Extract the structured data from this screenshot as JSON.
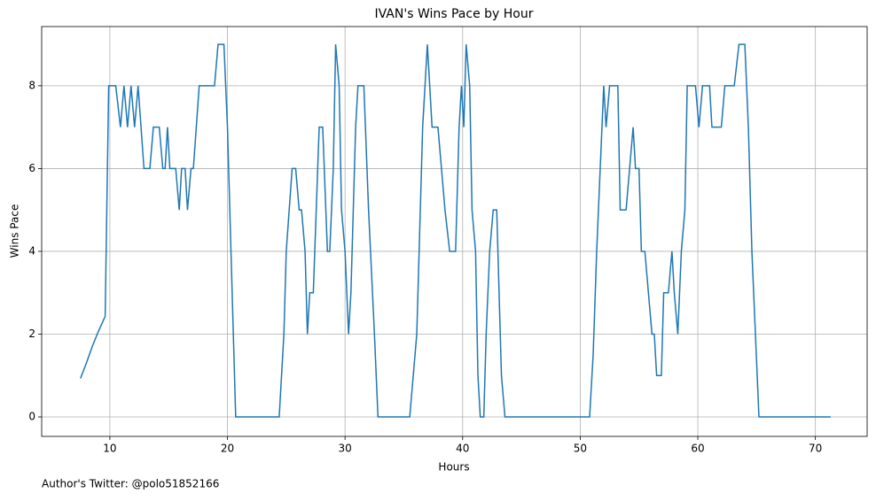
{
  "chart_data": {
    "type": "line",
    "title": "IVAN's Wins Pace by Hour",
    "xlabel": "Hours",
    "ylabel": "Wins Pace",
    "footer": "Author's Twitter: @polo51852166",
    "x": [
      7.5,
      8,
      8.5,
      9,
      9.6,
      9.9,
      10.5,
      10.9,
      11.2,
      11.5,
      11.8,
      12.1,
      12.4,
      12.9,
      13.4,
      13.7,
      14.2,
      14.5,
      14.7,
      14.9,
      15.1,
      15.6,
      15.9,
      16.1,
      16.4,
      16.6,
      16.9,
      17.1,
      17.6,
      18.9,
      19.2,
      19.7,
      20.0,
      20.3,
      20.7,
      24.4,
      24.8,
      25.0,
      25.5,
      25.8,
      26.1,
      26.3,
      26.6,
      26.8,
      27.0,
      27.3,
      27.8,
      28.1,
      28.5,
      28.7,
      29.0,
      29.2,
      29.5,
      29.7,
      30.0,
      30.3,
      30.5,
      30.9,
      31.1,
      31.6,
      32.0,
      32.5,
      32.8,
      35.5,
      35.8,
      36.1,
      36.4,
      36.6,
      37.0,
      37.4,
      37.9,
      38.2,
      38.5,
      38.9,
      39.4,
      39.7,
      39.9,
      40.1,
      40.3,
      40.6,
      40.8,
      41.1,
      41.3,
      41.5,
      41.8,
      42.0,
      42.3,
      42.6,
      42.9,
      43.3,
      43.6,
      50.8,
      51.1,
      51.4,
      51.7,
      52.0,
      52.2,
      52.5,
      53.2,
      53.4,
      53.9,
      54.2,
      54.5,
      54.7,
      55.0,
      55.2,
      55.5,
      55.8,
      56.1,
      56.3,
      56.5,
      56.9,
      57.1,
      57.5,
      57.8,
      58.0,
      58.3,
      58.6,
      58.9,
      59.1,
      59.8,
      60.1,
      60.4,
      61.0,
      61.2,
      62.0,
      62.3,
      63.1,
      63.5,
      64.0,
      64.3,
      64.6,
      64.9,
      65.2,
      71.3
    ],
    "series": [
      {
        "name": "Wins Pace",
        "color": "#1f77b4",
        "values": [
          0.93,
          1.3,
          1.7,
          2.05,
          2.43,
          8,
          8,
          7,
          8,
          7,
          8,
          7,
          8,
          6,
          6,
          7,
          7,
          6,
          6,
          7,
          6,
          6,
          5,
          6,
          6,
          5,
          6,
          6,
          8,
          8,
          9,
          9,
          7,
          4,
          0,
          0,
          2,
          4,
          6,
          6,
          5,
          5,
          4,
          2,
          3,
          3,
          7,
          7,
          4,
          4,
          6,
          9,
          8,
          5,
          4,
          2,
          3,
          7,
          8,
          8,
          5,
          2,
          0,
          0,
          1,
          2,
          5,
          7,
          9,
          7,
          7,
          6,
          5,
          4,
          4,
          7,
          8,
          7,
          9,
          8,
          5,
          4,
          1,
          0,
          0,
          2,
          4,
          5,
          5,
          1,
          0,
          0,
          1.5,
          4,
          6,
          8,
          7,
          8,
          8,
          5,
          5,
          6,
          7,
          6,
          6,
          4,
          4,
          3,
          2,
          2,
          1,
          1,
          3,
          3,
          4,
          3,
          2,
          4,
          5,
          8,
          8,
          7,
          8,
          8,
          7,
          7,
          8,
          8,
          9,
          9,
          7,
          4,
          2,
          0,
          0
        ]
      }
    ],
    "xlim": [
      4.2,
      74.4
    ],
    "ylim": [
      -0.47,
      9.43
    ],
    "xticks": [
      10,
      20,
      30,
      40,
      50,
      60,
      70
    ],
    "yticks": [
      0,
      2,
      4,
      6,
      8
    ],
    "grid": true
  }
}
